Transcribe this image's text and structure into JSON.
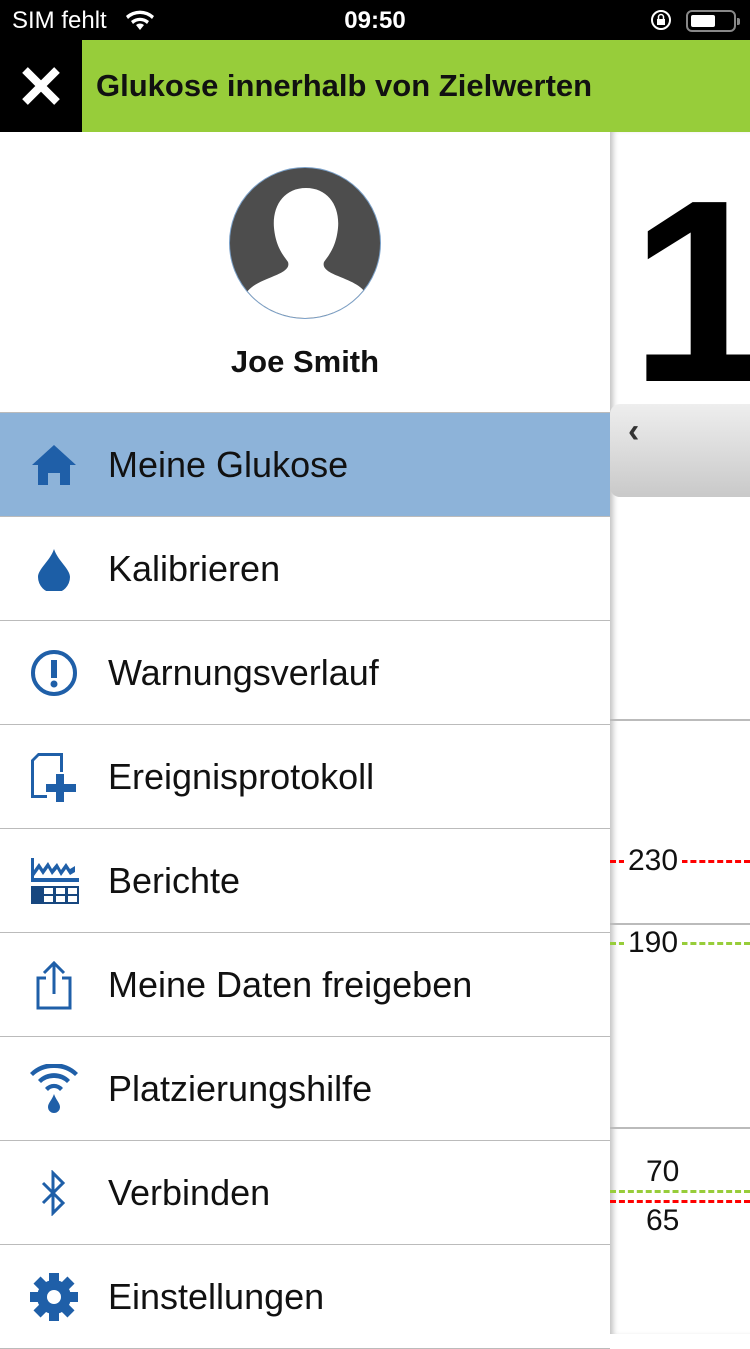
{
  "status": {
    "carrier": "SIM fehlt",
    "time": "09:50"
  },
  "banner": {
    "text": "Glukose innerhalb von Zielwerten",
    "color": "#97cd3a"
  },
  "profile": {
    "name": "Joe Smith"
  },
  "menu": [
    {
      "label": "Meine Glukose",
      "icon": "home-icon",
      "selected": true
    },
    {
      "label": "Kalibrieren",
      "icon": "drop-icon"
    },
    {
      "label": "Warnungsverlauf",
      "icon": "alert-icon"
    },
    {
      "label": "Ereignisprotokoll",
      "icon": "event-log-icon"
    },
    {
      "label": "Berichte",
      "icon": "reports-icon"
    },
    {
      "label": "Meine Daten freigeben",
      "icon": "share-icon"
    },
    {
      "label": "Platzierungshilfe",
      "icon": "placement-icon"
    },
    {
      "label": "Verbinden",
      "icon": "bluetooth-icon"
    },
    {
      "label": "Einstellungen",
      "icon": "gear-icon"
    }
  ],
  "glucose": {
    "value_partial": "1"
  },
  "thresholds": [
    {
      "label": "230",
      "color": "#ff0000"
    },
    {
      "label": "190",
      "color": "#97cd3a"
    },
    {
      "label": "70",
      "color": "#97cd3a"
    },
    {
      "label": "65",
      "color": "#ff0000"
    }
  ]
}
